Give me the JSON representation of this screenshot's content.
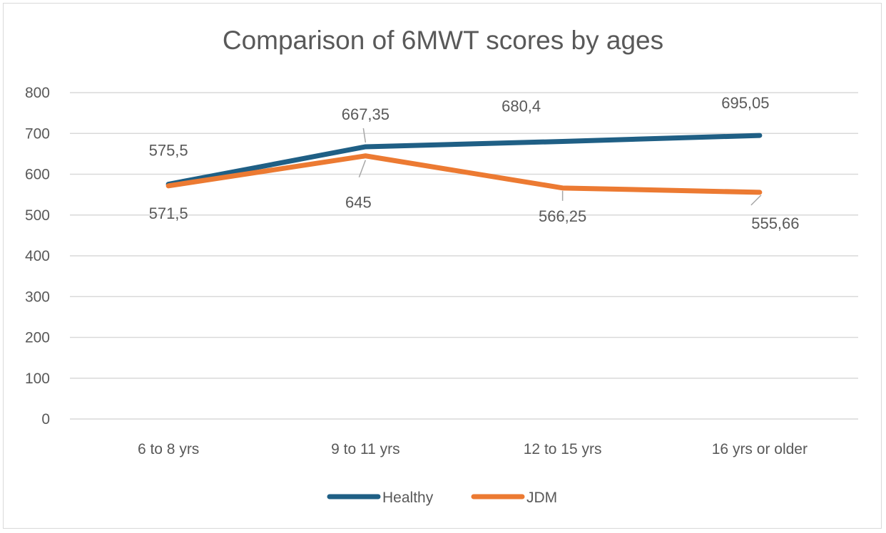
{
  "chart_data": {
    "type": "line",
    "title": "Comparison of 6MWT scores by ages",
    "xlabel": "",
    "ylabel": "",
    "categories": [
      "6 to 8 yrs",
      "9 to 11 yrs",
      "12 to 15 yrs",
      "16 yrs or older"
    ],
    "ylim": [
      0,
      800
    ],
    "yticks": [
      0,
      100,
      200,
      300,
      400,
      500,
      600,
      700,
      800
    ],
    "ytick_labels": [
      "0",
      "100",
      "200",
      "300",
      "400",
      "500",
      "600",
      "700",
      "800"
    ],
    "grid": true,
    "legend_position": "bottom",
    "series": [
      {
        "name": "Healthy",
        "color": "#1f5f85",
        "values": [
          575.5,
          667.35,
          680.4,
          695.05
        ],
        "labels": [
          "575,5",
          "667,35",
          "680,4",
          "695,05"
        ]
      },
      {
        "name": "JDM",
        "color": "#ec7a32",
        "values": [
          571.5,
          645,
          566.25,
          555.66
        ],
        "labels": [
          "571,5",
          "645",
          "566,25",
          "555,66"
        ]
      }
    ]
  }
}
